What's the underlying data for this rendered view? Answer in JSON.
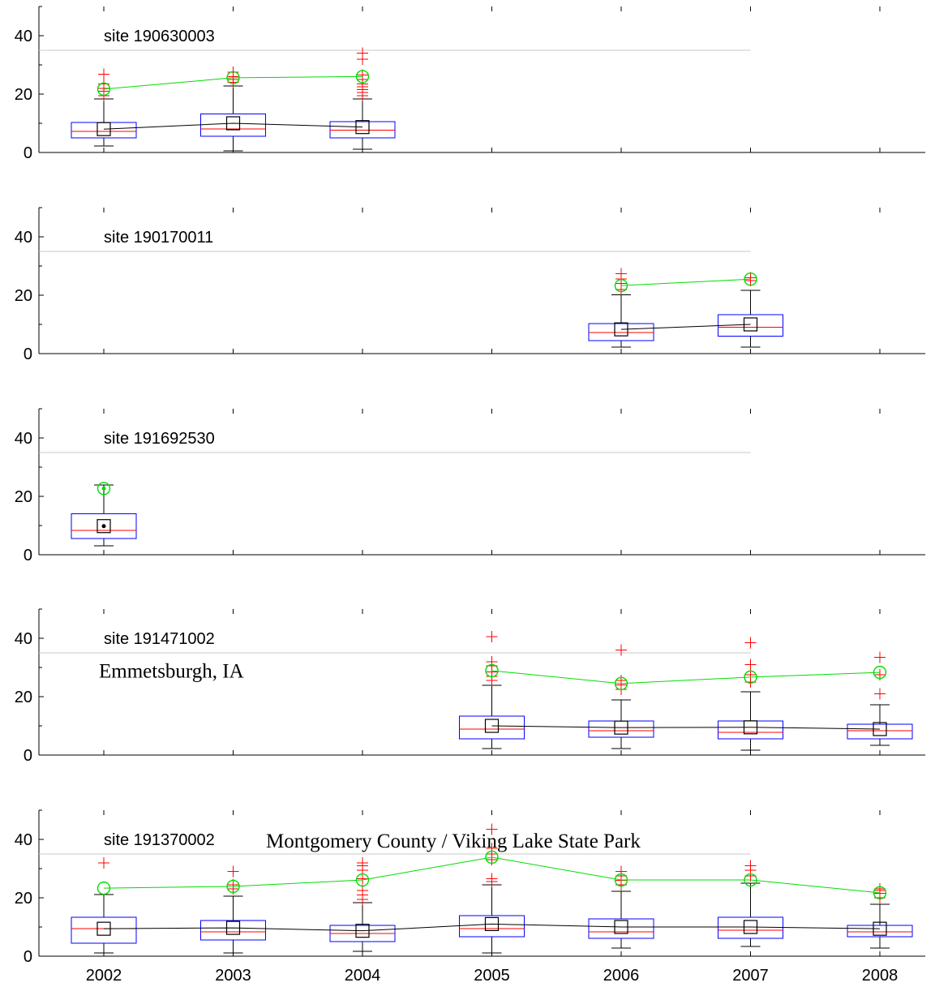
{
  "chart_data": {
    "type": "box",
    "x_tick_labels": [
      "2002",
      "2003",
      "2004",
      "2005",
      "2006",
      "2007",
      "2008"
    ],
    "ylim": [
      0,
      50
    ],
    "y_ticks": [
      0,
      20,
      40
    ],
    "reference_line": 35,
    "grid": false,
    "colors": {
      "box": "#0000ff",
      "median": "#ff0000",
      "outlier": "#ff0000",
      "mean_line": "#000000",
      "p98_line": "#00dd00",
      "reference": "#c8c8c8"
    },
    "panels": [
      {
        "site": "site 190630003",
        "annotation": "",
        "boxes": [
          {
            "year": "2002",
            "whisker_low": 2.2,
            "q1": 5,
            "median": 7.2,
            "q3": 10.3,
            "whisker_high": 18.3,
            "mean": 8,
            "p98": 21.7,
            "outliers": [
              19.5,
              21,
              22,
              23.5,
              26.8
            ]
          },
          {
            "year": "2003",
            "whisker_low": 0.6,
            "q1": 5.5,
            "median": 8,
            "q3": 13.2,
            "whisker_high": 22.8,
            "mean": 10,
            "p98": 25.6,
            "outliers": [
              24,
              25,
              26,
              27.5
            ]
          },
          {
            "year": "2004",
            "whisker_low": 1.1,
            "q1": 5,
            "median": 7.7,
            "q3": 10.5,
            "whisker_high": 18.3,
            "mean": 8.7,
            "p98": 26,
            "outliers": [
              19.5,
              20.5,
              21.5,
              22.5,
              23.5,
              25,
              26.5,
              32,
              34
            ]
          }
        ]
      },
      {
        "site": "site 190170011",
        "annotation": "",
        "boxes": [
          {
            "year": "2006",
            "whisker_low": 2.2,
            "q1": 4.4,
            "median": 7.2,
            "q3": 10.3,
            "whisker_high": 20.2,
            "mean": 8.3,
            "p98": 23.3,
            "outliers": [
              22,
              24,
              25.5,
              27.3
            ]
          },
          {
            "year": "2007",
            "whisker_low": 2.2,
            "q1": 6,
            "median": 9,
            "q3": 13.3,
            "whisker_high": 21.7,
            "mean": 10,
            "p98": 25.5,
            "outliers": [
              25,
              26
            ]
          }
        ]
      },
      {
        "site": "site 191692530",
        "annotation": "",
        "boxes": [
          {
            "year": "2002",
            "whisker_low": 3,
            "q1": 5.6,
            "median": 8.4,
            "q3": 14,
            "whisker_high": 23.9,
            "mean": 9.8,
            "p98": 22.7,
            "outliers": []
          }
        ]
      },
      {
        "site": "site 191471002",
        "annotation": "Emmetsburgh, IA",
        "boxes": [
          {
            "year": "2005",
            "whisker_low": 2.2,
            "q1": 5.6,
            "median": 8.9,
            "q3": 13.3,
            "whisker_high": 23.9,
            "mean": 10,
            "p98": 28.9,
            "outliers": [
              25.5,
              27,
              28.5,
              30.5,
              32,
              40.5
            ]
          },
          {
            "year": "2006",
            "whisker_low": 2.2,
            "q1": 6.1,
            "median": 8.3,
            "q3": 11.7,
            "whisker_high": 18.9,
            "mean": 9.4,
            "p98": 24.5,
            "outliers": [
              22.5,
              24,
              25.5,
              36
            ]
          },
          {
            "year": "2007",
            "whisker_low": 1.7,
            "q1": 5.6,
            "median": 7.8,
            "q3": 11.7,
            "whisker_high": 21.7,
            "mean": 9.5,
            "p98": 26.7,
            "outliers": [
              25,
              27.5,
              31,
              38.5
            ]
          },
          {
            "year": "2008",
            "whisker_low": 3.3,
            "q1": 5.6,
            "median": 8.3,
            "q3": 10.6,
            "whisker_high": 17.2,
            "mean": 8.9,
            "p98": 28.3,
            "outliers": [
              21,
              27.5,
              33.5
            ]
          }
        ]
      },
      {
        "site": "site 191370002",
        "annotation": "Montgomery County / Viking Lake State Park",
        "boxes": [
          {
            "year": "2002",
            "whisker_low": 1.1,
            "q1": 4.4,
            "median": 9.4,
            "q3": 13.3,
            "whisker_high": 21.1,
            "mean": 9.4,
            "p98": 23.3,
            "outliers": [
              32
            ]
          },
          {
            "year": "2003",
            "whisker_low": 1.1,
            "q1": 5.6,
            "median": 8.3,
            "q3": 12.2,
            "whisker_high": 20.6,
            "mean": 9.7,
            "p98": 23.9,
            "outliers": [
              23,
              24.5,
              29
            ]
          },
          {
            "year": "2004",
            "whisker_low": 1.7,
            "q1": 5,
            "median": 7.8,
            "q3": 10.6,
            "whisker_high": 18.3,
            "mean": 8.7,
            "p98": 26.1,
            "outliers": [
              19.5,
              21,
              22.5,
              26.5,
              29.5,
              31,
              32
            ]
          },
          {
            "year": "2005",
            "whisker_low": 1.1,
            "q1": 6.7,
            "median": 9.4,
            "q3": 13.9,
            "whisker_high": 24.4,
            "mean": 11,
            "p98": 33.9,
            "outliers": [
              25.5,
              26.5,
              33,
              35,
              37,
              43.5
            ]
          },
          {
            "year": "2006",
            "whisker_low": 2.8,
            "q1": 6.1,
            "median": 8.3,
            "q3": 12.8,
            "whisker_high": 22.2,
            "mean": 10,
            "p98": 26.1,
            "outliers": [
              24.5,
              26,
              27.5,
              29
            ]
          },
          {
            "year": "2007",
            "whisker_low": 3.3,
            "q1": 6.1,
            "median": 8.9,
            "q3": 13.3,
            "whisker_high": 25,
            "mean": 10,
            "p98": 26.1,
            "outliers": [
              27.5,
              29.5,
              31
            ]
          },
          {
            "year": "2008",
            "whisker_low": 2.8,
            "q1": 6.7,
            "median": 8.3,
            "q3": 10.6,
            "whisker_high": 17.8,
            "mean": 9.4,
            "p98": 21.7,
            "outliers": [
              20,
              21.5,
              22.5,
              23
            ]
          }
        ]
      }
    ]
  }
}
